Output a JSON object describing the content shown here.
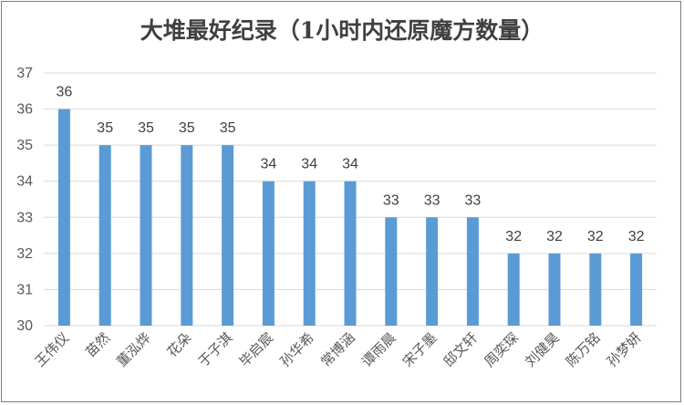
{
  "chart_data": {
    "type": "bar",
    "title": "大堆最好纪录（1小时内还原魔方数量）",
    "xlabel": "",
    "ylabel": "",
    "categories": [
      "王伟仪",
      "苗然",
      "董泓烨",
      "花朵",
      "于子淇",
      "毕启宸",
      "孙华希",
      "常博涵",
      "谭雨晨",
      "宋子墨",
      "邸文轩",
      "周奕琛",
      "刘健昊",
      "陈万铭",
      "孙梦妍"
    ],
    "values": [
      36,
      35,
      35,
      35,
      35,
      34,
      34,
      34,
      33,
      33,
      33,
      32,
      32,
      32,
      32
    ],
    "ylim": [
      30,
      37
    ],
    "yticks": [
      "30",
      "31",
      "32",
      "33",
      "34",
      "35",
      "36",
      "37"
    ],
    "grid": true,
    "legend": "none",
    "bar_color": "#5b9bd5",
    "grid_color": "#d9d9d9"
  }
}
